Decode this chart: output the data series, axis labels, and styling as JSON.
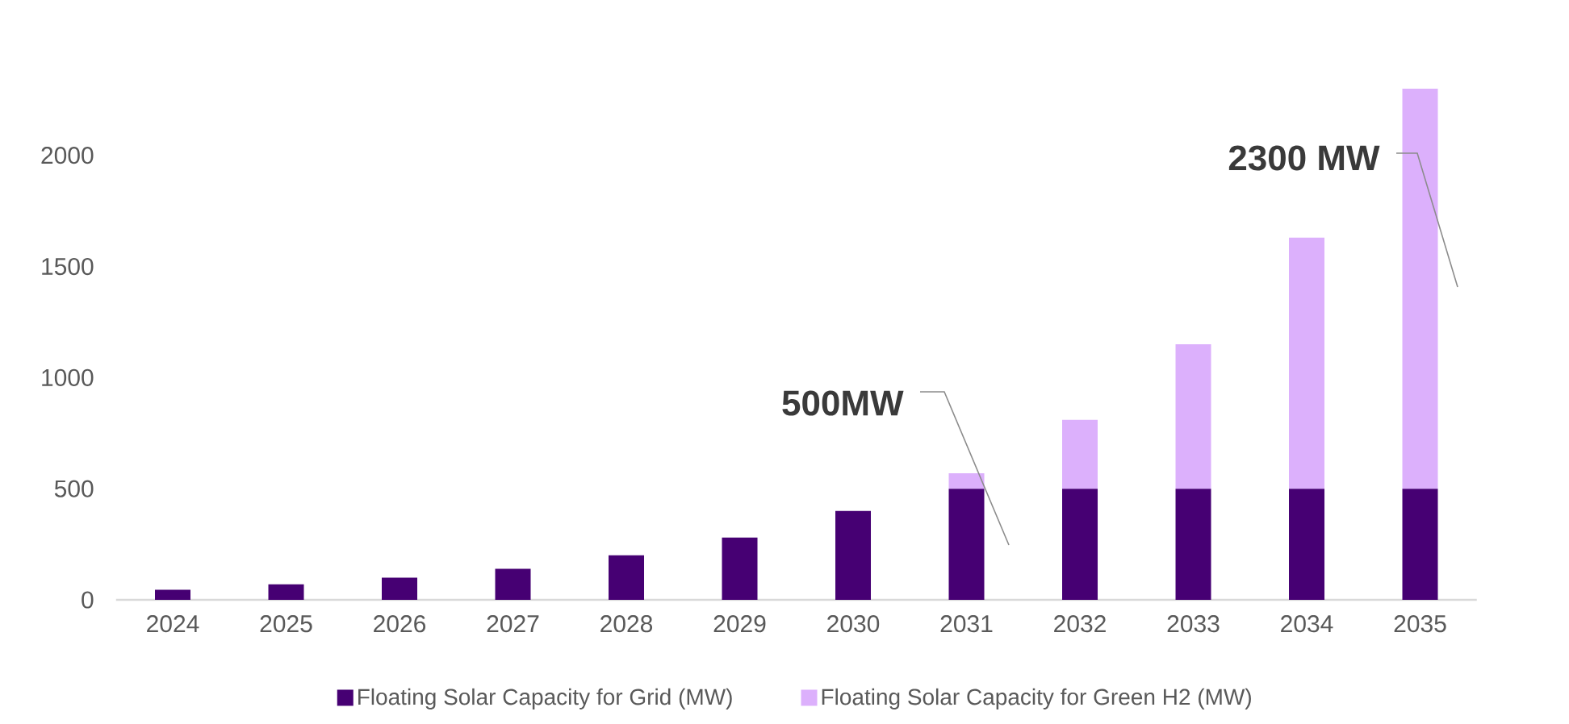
{
  "chart_data": {
    "type": "bar",
    "stacked": true,
    "categories": [
      "2024",
      "2025",
      "2026",
      "2027",
      "2028",
      "2029",
      "2030",
      "2031",
      "2032",
      "2033",
      "2034",
      "2035"
    ],
    "series": [
      {
        "name": "Floating Solar Capacity for Grid (MW)",
        "color": "#460073",
        "values": [
          45,
          70,
          100,
          140,
          200,
          280,
          400,
          500,
          500,
          500,
          500,
          500
        ]
      },
      {
        "name": "Floating Solar Capacity for Green H2 (MW)",
        "color": "#dcb0fc",
        "values": [
          0,
          0,
          0,
          0,
          0,
          0,
          0,
          70,
          310,
          650,
          1130,
          1800
        ]
      }
    ],
    "ylim": [
      0,
      2300
    ],
    "yticks": [
      0,
      500,
      1000,
      1500,
      2000
    ],
    "grid": false,
    "legend": "bottom",
    "annotations": [
      "500MW",
      "2300 MW"
    ]
  }
}
